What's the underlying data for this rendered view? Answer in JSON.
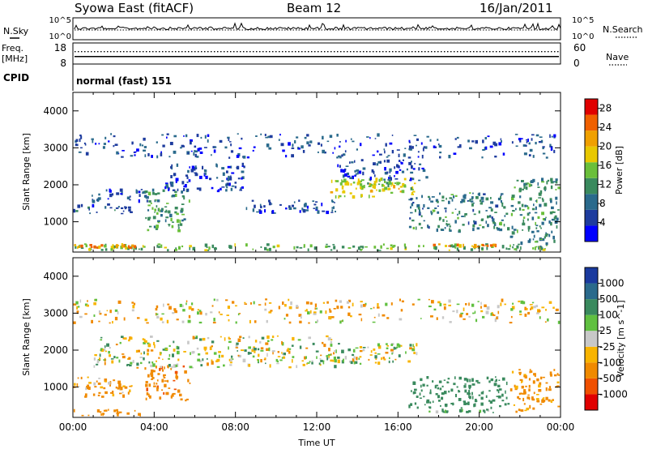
{
  "header": {
    "station": "Syowa East (fitACF)",
    "beam": "Beam 12",
    "date": "16/Jan/2011"
  },
  "top_panels": {
    "nsky_label": "N.Sky",
    "nsearch_label": "N.Search",
    "noise_top_tick": "10^5",
    "noise_bottom_tick": "10^0",
    "freq_label_line1": "Freq.",
    "freq_label_line2": "[MHz]",
    "freq_ticks": [
      "18",
      "8"
    ],
    "nave_label": "Nave",
    "nave_ticks": [
      "60",
      "0"
    ],
    "cpid_label": "CPID",
    "cpid_text": "normal (fast) 151",
    "freq_mhz_level": 11.5,
    "nave_level": 38
  },
  "colors": {
    "power_scale": [
      "#0000ff",
      "#1e3c9e",
      "#2a6a8c",
      "#3a8a5e",
      "#6abf3a",
      "#e8c800",
      "#f0a000",
      "#f06000",
      "#e00000"
    ],
    "velocity_scale": [
      "#e00000",
      "#f05000",
      "#f08a00",
      "#f8b400",
      "#c8c8c8",
      "#60c040",
      "#3a8a5e",
      "#2a6a8c",
      "#1a3a9e"
    ]
  },
  "chart_data": [
    {
      "type": "heatmap",
      "panel": "power",
      "title": "",
      "xlabel": "Time UT",
      "ylabel": "Slant Range [km]",
      "x_ticks": [
        "00:00",
        "04:00",
        "08:00",
        "12:00",
        "16:00",
        "20:00",
        "00:00"
      ],
      "xlim_hours": [
        0,
        24
      ],
      "y_ticks": [
        1000,
        2000,
        3000,
        4000
      ],
      "ylim_km": [
        180,
        4500
      ],
      "colorbar_label": "Power [dB]",
      "colorbar_ticks": [
        4,
        8,
        12,
        16,
        20,
        24,
        28
      ],
      "colorbar_range": [
        0,
        30
      ],
      "regions": [
        {
          "t0": 0.0,
          "t1": 24.0,
          "r0": 200,
          "r1": 420,
          "value": 14
        },
        {
          "t0": 0.0,
          "t1": 3.5,
          "r0": 260,
          "r1": 420,
          "value": 22
        },
        {
          "t0": 0.0,
          "t1": 3.0,
          "r0": 1200,
          "r1": 1500,
          "value": 7
        },
        {
          "t0": 0.8,
          "t1": 3.8,
          "r0": 1500,
          "r1": 1900,
          "value": 6
        },
        {
          "t0": 3.5,
          "t1": 5.8,
          "r0": 700,
          "r1": 1900,
          "value": 12
        },
        {
          "t0": 4.5,
          "t1": 8.5,
          "r0": 1800,
          "r1": 2600,
          "value": 5
        },
        {
          "t0": 8.5,
          "t1": 13.0,
          "r0": 1200,
          "r1": 1600,
          "value": 6
        },
        {
          "t0": 12.5,
          "t1": 17.0,
          "r0": 1600,
          "r1": 2200,
          "value": 17
        },
        {
          "t0": 14.0,
          "t1": 16.5,
          "r0": 1900,
          "r1": 2100,
          "value": 16
        },
        {
          "t0": 13.0,
          "t1": 17.5,
          "r0": 2100,
          "r1": 2700,
          "value": 5
        },
        {
          "t0": 16.5,
          "t1": 21.5,
          "r0": 700,
          "r1": 1800,
          "value": 10
        },
        {
          "t0": 17.5,
          "t1": 21.0,
          "r0": 280,
          "r1": 420,
          "value": 22
        },
        {
          "t0": 21.5,
          "t1": 24.0,
          "r0": 300,
          "r1": 2200,
          "value": 11
        },
        {
          "t0": 0.0,
          "t1": 24.0,
          "r0": 2700,
          "r1": 3400,
          "value": 6
        }
      ]
    },
    {
      "type": "heatmap",
      "panel": "velocity",
      "title": "",
      "xlabel": "Time UT",
      "ylabel": "Slant Range [km]",
      "x_ticks": [
        "00:00",
        "04:00",
        "08:00",
        "12:00",
        "16:00",
        "20:00",
        "00:00"
      ],
      "xlim_hours": [
        0,
        24
      ],
      "y_ticks": [
        1000,
        2000,
        3000,
        4000
      ],
      "ylim_km": [
        180,
        4500
      ],
      "colorbar_label": "Velocity [m s^-1]",
      "colorbar_ticks": [
        "1000",
        "500",
        "100",
        "25",
        "-25",
        "-100",
        "-500",
        "-1000"
      ],
      "colorbar_range": [
        -1000,
        1000
      ],
      "regions": [
        {
          "t0": 0.0,
          "t1": 3.5,
          "r0": 200,
          "r1": 420,
          "value": -300
        },
        {
          "t0": 3.5,
          "t1": 5.8,
          "r0": 600,
          "r1": 1600,
          "value": -400
        },
        {
          "t0": 0.0,
          "t1": 3.0,
          "r0": 700,
          "r1": 1300,
          "value": -150
        },
        {
          "t0": 1.0,
          "t1": 13.0,
          "r0": 1500,
          "r1": 2400,
          "value": 0
        },
        {
          "t0": 12.5,
          "t1": 17.0,
          "r0": 1600,
          "r1": 2200,
          "value": 0
        },
        {
          "t0": 16.5,
          "t1": 21.5,
          "r0": 400,
          "r1": 1300,
          "value": 300
        },
        {
          "t0": 17.5,
          "t1": 21.0,
          "r0": 280,
          "r1": 420,
          "value": 150
        },
        {
          "t0": 21.5,
          "t1": 24.0,
          "r0": 300,
          "r1": 1500,
          "value": -200
        },
        {
          "t0": 0.0,
          "t1": 24.0,
          "r0": 2700,
          "r1": 3400,
          "value": -60
        }
      ]
    }
  ]
}
